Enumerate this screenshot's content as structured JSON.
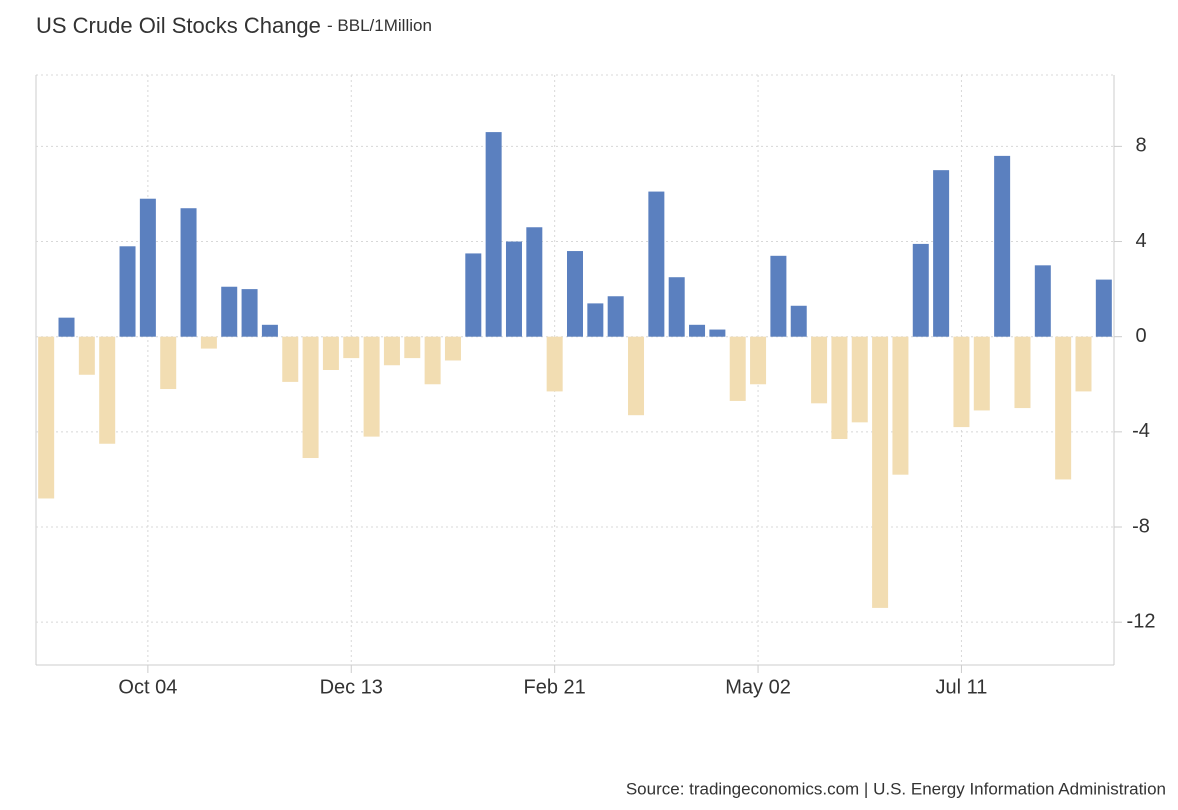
{
  "chart_data": {
    "type": "bar",
    "title": "US Crude Oil Stocks Change",
    "subtitle": "- BBL/1Million",
    "source": "Source: tradingeconomics.com | U.S. Energy Information Administration",
    "categories": [
      null,
      null,
      null,
      null,
      null,
      "Oct 04",
      null,
      null,
      null,
      null,
      null,
      null,
      null,
      null,
      null,
      "Dec 13",
      null,
      null,
      null,
      null,
      null,
      null,
      null,
      null,
      null,
      "Feb 21",
      null,
      null,
      null,
      null,
      null,
      null,
      null,
      null,
      null,
      "May 02",
      null,
      null,
      null,
      null,
      null,
      null,
      null,
      null,
      null,
      "Jul 11",
      null,
      null,
      null,
      null,
      null,
      null,
      null
    ],
    "values": [
      -6.8,
      0.8,
      -1.6,
      -4.5,
      3.8,
      5.8,
      -2.2,
      5.4,
      -0.5,
      2.1,
      2.0,
      0.5,
      -1.9,
      -5.1,
      -1.4,
      -0.9,
      -4.2,
      -1.2,
      -0.9,
      -2.0,
      -1.0,
      3.5,
      8.6,
      4.0,
      4.6,
      -2.3,
      3.6,
      1.4,
      1.7,
      -3.3,
      6.1,
      2.5,
      0.5,
      0.3,
      -2.7,
      -2.0,
      3.4,
      1.3,
      -2.8,
      -4.3,
      -3.6,
      -11.4,
      -5.8,
      3.9,
      7.0,
      -3.8,
      -3.1,
      7.6,
      -3.0,
      3.0,
      -6.0,
      -2.3,
      2.4
    ],
    "color": "#5b80bf",
    "negative_color": "#f2ddb2",
    "ylim": [
      -13.8,
      11
    ],
    "yticks": [
      -12,
      -8,
      -4,
      0,
      4,
      8
    ],
    "grid": true
  }
}
